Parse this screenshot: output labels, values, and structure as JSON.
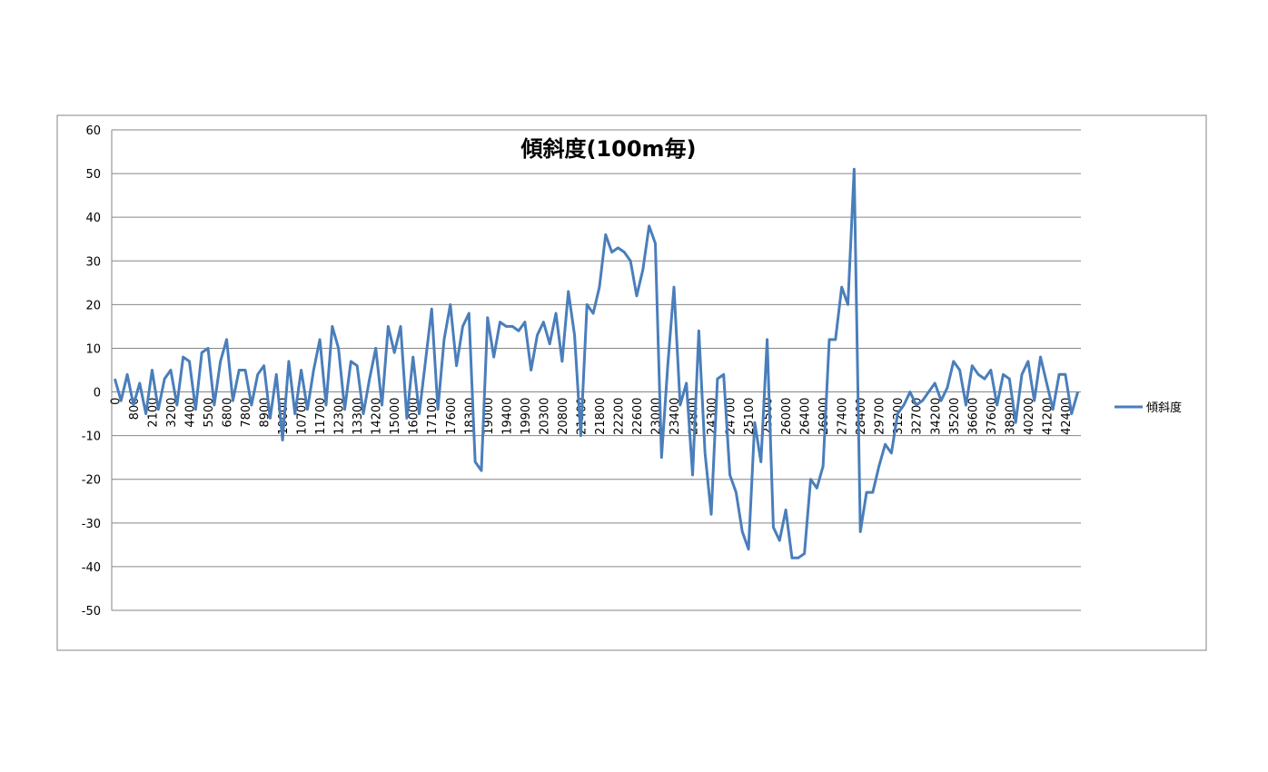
{
  "chart_data": {
    "type": "line",
    "title": "傾斜度(100m毎)",
    "categories": [
      "0",
      null,
      null,
      "800",
      null,
      null,
      "2100",
      null,
      null,
      "3200",
      null,
      null,
      "4400",
      null,
      null,
      "5500",
      null,
      null,
      "6800",
      null,
      null,
      "7800",
      null,
      null,
      "8900",
      null,
      null,
      "10000",
      null,
      null,
      "10700",
      null,
      null,
      "11700",
      null,
      null,
      "12300",
      null,
      null,
      "13300",
      null,
      null,
      "14200",
      null,
      null,
      "15000",
      null,
      null,
      "16000",
      null,
      null,
      "17100",
      null,
      null,
      "17600",
      null,
      null,
      "18300",
      null,
      null,
      "19000",
      null,
      null,
      "19400",
      null,
      null,
      "19900",
      null,
      null,
      "20300",
      null,
      null,
      "20800",
      null,
      null,
      "21400",
      null,
      null,
      "21800",
      null,
      null,
      "22200",
      null,
      null,
      "22600",
      null,
      null,
      "23000",
      null,
      null,
      "23400",
      null,
      null,
      "23800",
      null,
      null,
      "24300",
      null,
      null,
      "24700",
      null,
      null,
      "25100",
      null,
      null,
      "25500",
      null,
      null,
      "26000",
      null,
      null,
      "26400",
      null,
      null,
      "26900",
      null,
      null,
      "27400",
      null,
      null,
      "28400",
      null,
      null,
      "29700",
      null,
      null,
      "31200",
      null,
      null,
      "32700",
      null,
      null,
      "34200",
      null,
      null,
      "35200",
      null,
      null,
      "36600",
      null,
      null,
      "37600",
      null,
      null,
      "38900",
      null,
      null,
      "40200",
      null,
      null,
      "41200",
      null,
      null,
      "42400",
      null,
      null
    ],
    "series": [
      {
        "name": "傾斜度",
        "color": "#4a7ebb",
        "values": [
          3,
          -2,
          4,
          -3,
          2,
          -5,
          5,
          -4,
          3,
          5,
          -3,
          8,
          7,
          -4,
          9,
          10,
          -3,
          7,
          12,
          -2,
          5,
          5,
          -3,
          4,
          6,
          -6,
          4,
          -11,
          7,
          -5,
          5,
          -4,
          5,
          12,
          -3,
          15,
          10,
          -4,
          7,
          6,
          -5,
          3,
          10,
          -3,
          15,
          9,
          15,
          -6,
          8,
          -5,
          7,
          19,
          -4,
          12,
          20,
          6,
          15,
          18,
          -16,
          -18,
          17,
          8,
          16,
          15,
          15,
          14,
          16,
          5,
          13,
          16,
          11,
          18,
          7,
          23,
          13,
          -10,
          20,
          18,
          24,
          36,
          32,
          33,
          32,
          30,
          22,
          28,
          38,
          34,
          -15,
          6,
          24,
          -3,
          2,
          -19,
          14,
          -14,
          -28,
          3,
          4,
          -19,
          -23,
          -32,
          -36,
          -7,
          -16,
          12,
          -31,
          -34,
          -27,
          -38,
          -38,
          -37,
          -20,
          -22,
          -17,
          12,
          12,
          24,
          20,
          51,
          -32,
          -23,
          -23,
          -17,
          -12,
          -14,
          -5,
          -3,
          0,
          -3,
          -2,
          0,
          2,
          -2,
          1,
          7,
          5,
          -3,
          6,
          4,
          3,
          5,
          -3,
          4,
          3,
          -7,
          4,
          7,
          -2,
          8,
          2,
          -4,
          4,
          4,
          -5,
          0
        ]
      }
    ],
    "ylim": [
      -50,
      60
    ],
    "yticks": [
      -50,
      -40,
      -30,
      -20,
      -10,
      0,
      10,
      20,
      30,
      40,
      50,
      60
    ],
    "grid": true,
    "legend": "right"
  }
}
